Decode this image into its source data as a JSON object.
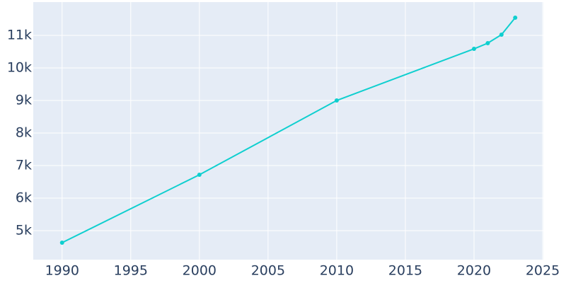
{
  "chart_data": {
    "type": "line",
    "x": [
      1990,
      2000,
      2010,
      2020,
      2021,
      2022,
      2023
    ],
    "series": [
      {
        "color": "#0fcfcf",
        "values": [
          4630,
          6717,
          9000,
          10587,
          10761,
          11022,
          11543
        ]
      }
    ],
    "xlim": [
      1987.9,
      2025.05
    ],
    "xticks": [
      1990,
      1995,
      2000,
      2005,
      2010,
      2015,
      2020,
      2025
    ],
    "ylim": [
      4109,
      12022
    ],
    "yticks": [
      {
        "value": 5000,
        "label": "5k"
      },
      {
        "value": 6000,
        "label": "6k"
      },
      {
        "value": 7000,
        "label": "7k"
      },
      {
        "value": 8000,
        "label": "8k"
      },
      {
        "value": 9000,
        "label": "9k"
      },
      {
        "value": 10000,
        "label": "10k"
      },
      {
        "value": 11000,
        "label": "11k"
      }
    ],
    "grid": true
  }
}
